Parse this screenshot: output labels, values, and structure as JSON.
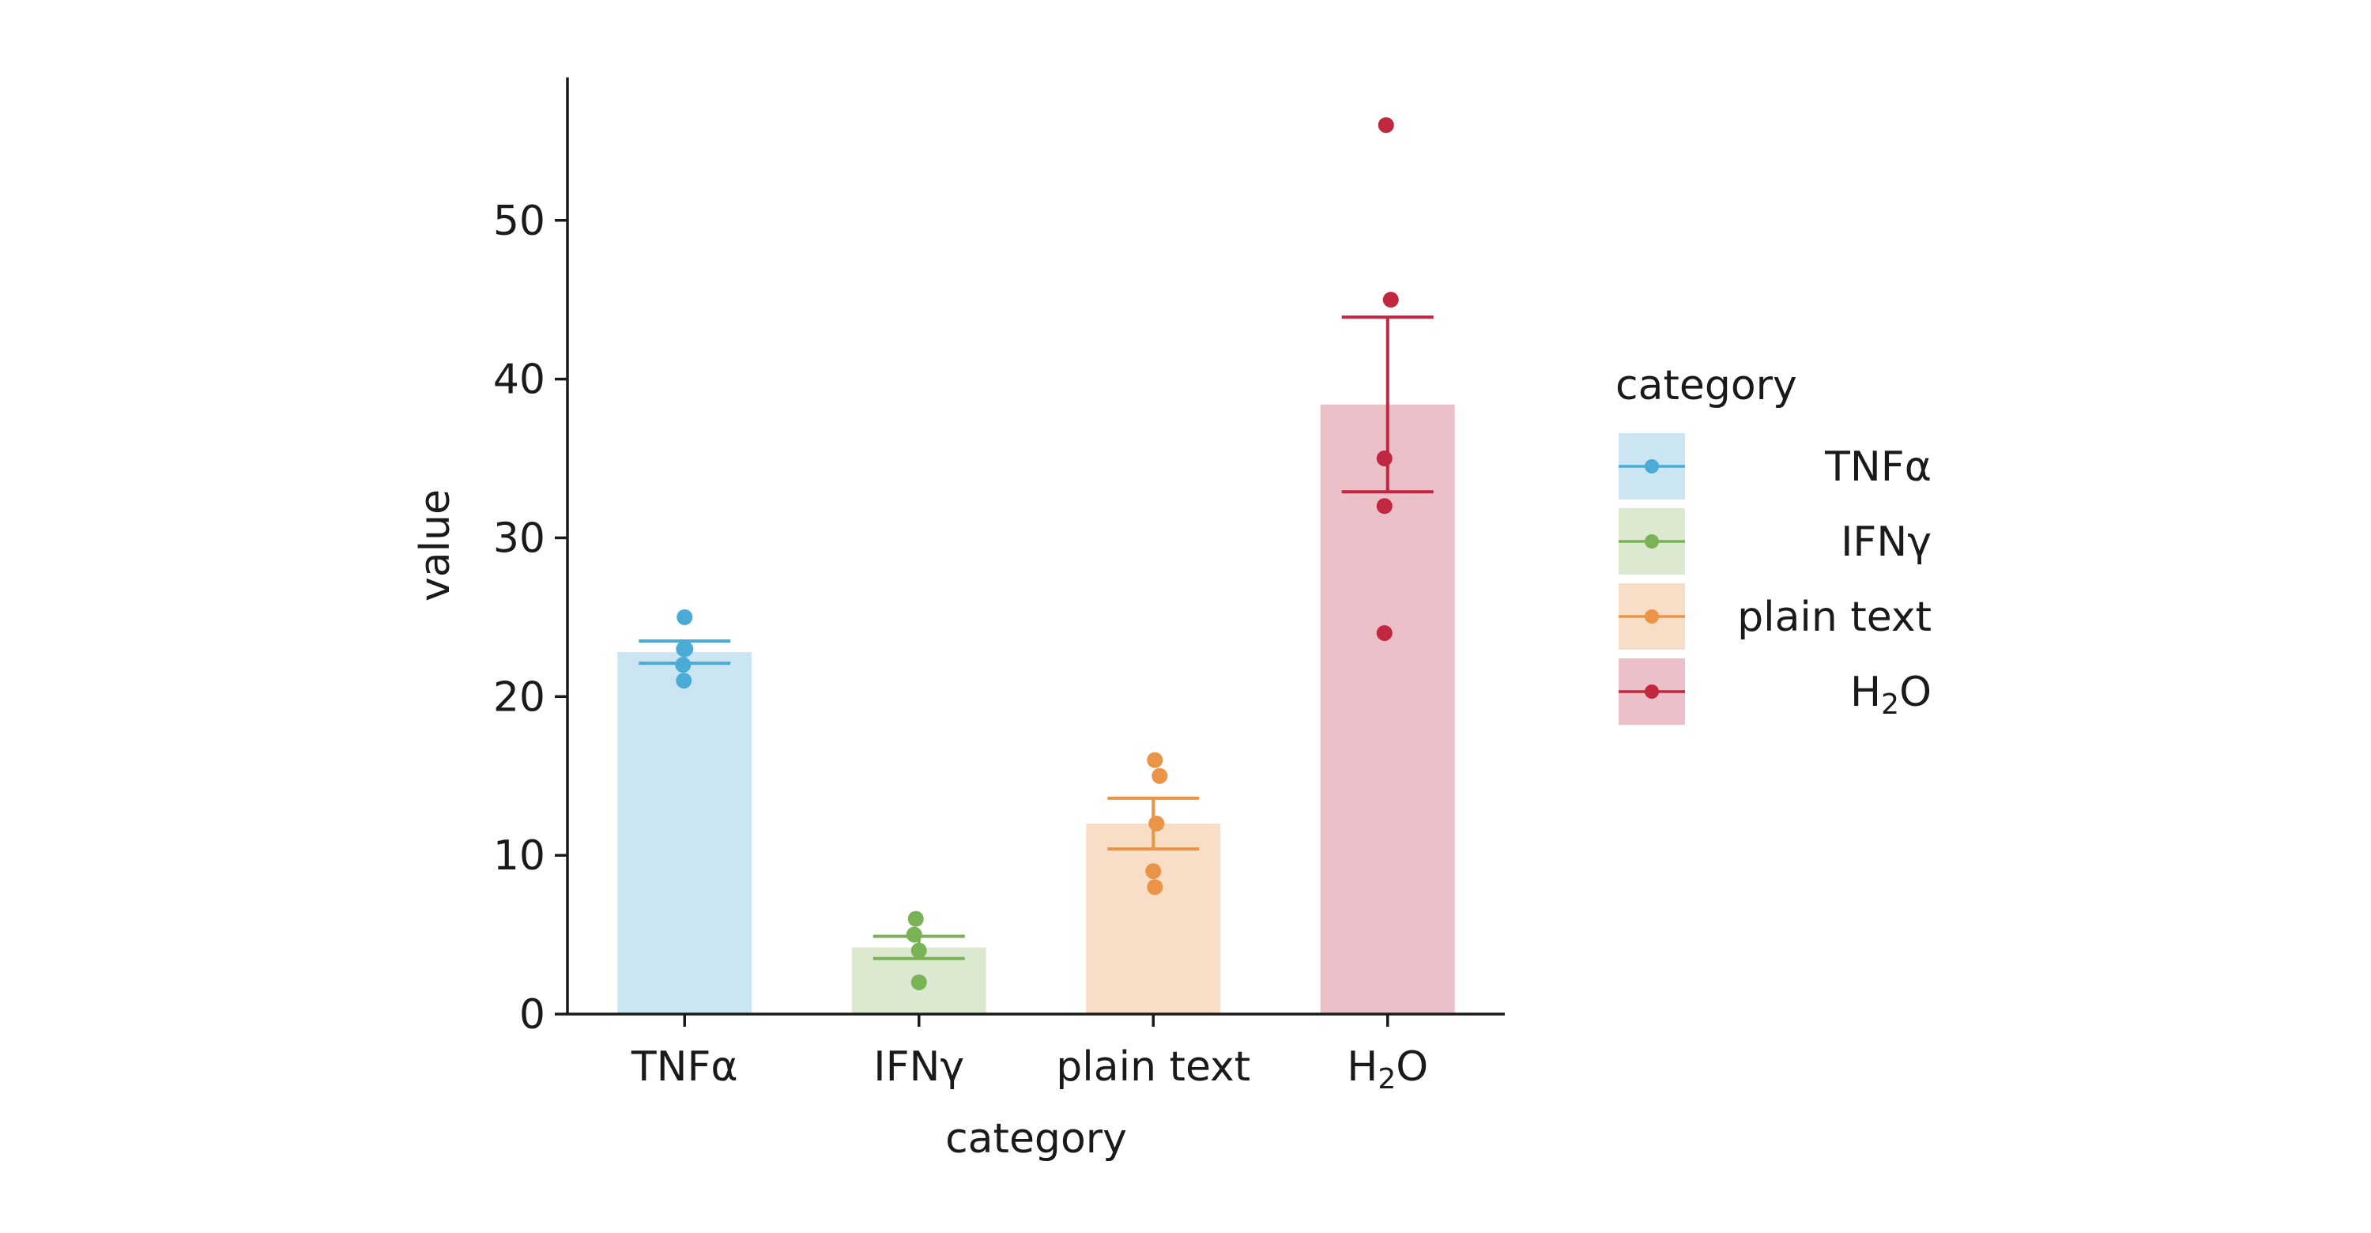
{
  "chart_data": {
    "type": "bar",
    "xlabel": "category",
    "ylabel": "value",
    "ylim": [
      0,
      59
    ],
    "yticks": [
      0,
      10,
      20,
      30,
      40,
      50
    ],
    "categories": [
      {
        "base": "TNFα",
        "sub": "",
        "tail": ""
      },
      {
        "base": "IFNγ",
        "sub": "",
        "tail": ""
      },
      {
        "base": "plain text",
        "sub": "",
        "tail": ""
      },
      {
        "base": "H",
        "sub": "2",
        "tail": "O"
      }
    ],
    "bars": [
      {
        "mean": 22.8,
        "err_low": 22.1,
        "err_high": 23.5,
        "points": [
          25,
          23,
          23,
          22,
          21
        ],
        "color": "#4aacd6",
        "fill": "#cbe5f2"
      },
      {
        "mean": 4.2,
        "err_low": 3.5,
        "err_high": 4.9,
        "points": [
          6,
          5,
          4,
          2
        ],
        "color": "#7ab356",
        "fill": "#dae9cf"
      },
      {
        "mean": 12.0,
        "err_low": 10.4,
        "err_high": 13.6,
        "points": [
          16,
          15,
          12,
          9,
          8
        ],
        "color": "#ea9447",
        "fill": "#f8dec6"
      },
      {
        "mean": 38.4,
        "err_low": 32.9,
        "err_high": 43.9,
        "points": [
          56,
          45,
          35,
          32,
          24
        ],
        "color": "#c1273f",
        "fill": "#ebc0c8"
      }
    ],
    "legend": {
      "title": "category",
      "placement": "right"
    },
    "grid": false
  }
}
